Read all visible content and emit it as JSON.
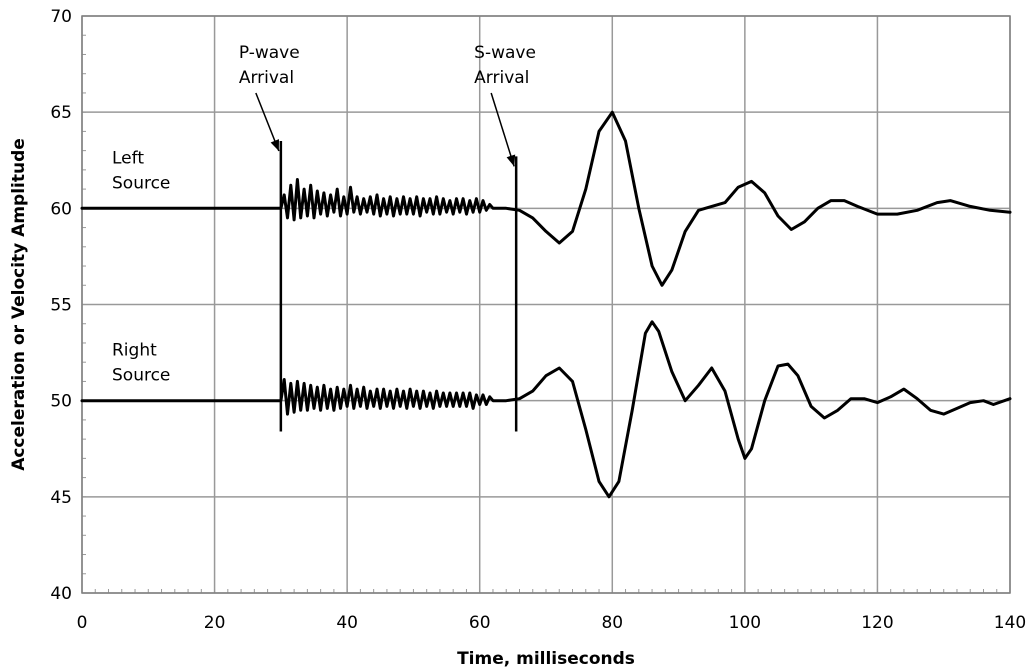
{
  "chart_data": {
    "type": "line",
    "title": "",
    "xlabel": "Time, milliseconds",
    "ylabel": "Acceleration or Velocity Amplitude",
    "xlim": [
      0,
      140
    ],
    "ylim": [
      40,
      70
    ],
    "x_ticks": [
      0,
      20,
      40,
      60,
      80,
      100,
      120,
      140
    ],
    "y_ticks": [
      40,
      45,
      50,
      55,
      60,
      65,
      70
    ],
    "grid": true,
    "legend": "none",
    "line_color": "#000000",
    "grid_color": "#999999",
    "series": [
      {
        "baseline": 60,
        "label_lines": [
          "Left",
          "Source"
        ],
        "points": [
          [
            0,
            60
          ],
          [
            30,
            60
          ],
          [
            30.5,
            60.7
          ],
          [
            31,
            59.5
          ],
          [
            31.5,
            61.2
          ],
          [
            32,
            59.4
          ],
          [
            32.5,
            61.5
          ],
          [
            33,
            59.5
          ],
          [
            33.5,
            61.0
          ],
          [
            34,
            59.6
          ],
          [
            34.5,
            61.2
          ],
          [
            35,
            59.5
          ],
          [
            35.5,
            60.9
          ],
          [
            36,
            59.7
          ],
          [
            36.5,
            60.8
          ],
          [
            37,
            59.6
          ],
          [
            37.5,
            60.7
          ],
          [
            38,
            59.8
          ],
          [
            38.5,
            61.0
          ],
          [
            39,
            59.6
          ],
          [
            39.5,
            60.6
          ],
          [
            40,
            59.7
          ],
          [
            40.5,
            61.1
          ],
          [
            41,
            59.8
          ],
          [
            41.5,
            60.6
          ],
          [
            42,
            59.7
          ],
          [
            42.5,
            60.5
          ],
          [
            43,
            59.8
          ],
          [
            43.5,
            60.6
          ],
          [
            44,
            59.7
          ],
          [
            44.5,
            60.7
          ],
          [
            45,
            59.6
          ],
          [
            45.5,
            60.5
          ],
          [
            46,
            59.7
          ],
          [
            46.5,
            60.6
          ],
          [
            47,
            59.6
          ],
          [
            47.5,
            60.5
          ],
          [
            48,
            59.7
          ],
          [
            48.5,
            60.6
          ],
          [
            49,
            59.7
          ],
          [
            49.5,
            60.5
          ],
          [
            50,
            59.7
          ],
          [
            50.5,
            60.6
          ],
          [
            51,
            59.6
          ],
          [
            51.5,
            60.5
          ],
          [
            52,
            59.8
          ],
          [
            52.5,
            60.5
          ],
          [
            53,
            59.7
          ],
          [
            53.5,
            60.6
          ],
          [
            54,
            59.7
          ],
          [
            54.5,
            60.5
          ],
          [
            55,
            59.8
          ],
          [
            55.5,
            60.4
          ],
          [
            56,
            59.7
          ],
          [
            56.5,
            60.5
          ],
          [
            57,
            59.8
          ],
          [
            57.5,
            60.5
          ],
          [
            58,
            59.7
          ],
          [
            58.5,
            60.4
          ],
          [
            59,
            59.8
          ],
          [
            59.5,
            60.5
          ],
          [
            60,
            59.8
          ],
          [
            60.5,
            60.4
          ],
          [
            61,
            59.9
          ],
          [
            61.5,
            60.2
          ],
          [
            62,
            60
          ],
          [
            64,
            60
          ],
          [
            66,
            59.9
          ],
          [
            68,
            59.5
          ],
          [
            70,
            58.8
          ],
          [
            72,
            58.2
          ],
          [
            74,
            58.8
          ],
          [
            76,
            61.0
          ],
          [
            78,
            64.0
          ],
          [
            80,
            65.0
          ],
          [
            82,
            63.5
          ],
          [
            84,
            60.0
          ],
          [
            86,
            57.0
          ],
          [
            87.5,
            56.0
          ],
          [
            89,
            56.8
          ],
          [
            91,
            58.8
          ],
          [
            93,
            59.9
          ],
          [
            95,
            60.1
          ],
          [
            97,
            60.3
          ],
          [
            99,
            61.1
          ],
          [
            101,
            61.4
          ],
          [
            103,
            60.8
          ],
          [
            105,
            59.6
          ],
          [
            107,
            58.9
          ],
          [
            109,
            59.3
          ],
          [
            111,
            60.0
          ],
          [
            113,
            60.4
          ],
          [
            115,
            60.4
          ],
          [
            117,
            60.1
          ],
          [
            120,
            59.7
          ],
          [
            123,
            59.7
          ],
          [
            126,
            59.9
          ],
          [
            129,
            60.3
          ],
          [
            131,
            60.4
          ],
          [
            134,
            60.1
          ],
          [
            137,
            59.9
          ],
          [
            140,
            59.8
          ]
        ]
      },
      {
        "baseline": 50,
        "label_lines": [
          "Right",
          "Source"
        ],
        "points": [
          [
            0,
            50
          ],
          [
            30,
            50
          ],
          [
            30.5,
            51.1
          ],
          [
            31,
            49.3
          ],
          [
            31.5,
            50.9
          ],
          [
            32,
            49.4
          ],
          [
            32.5,
            51.0
          ],
          [
            33,
            49.5
          ],
          [
            33.5,
            50.9
          ],
          [
            34,
            49.5
          ],
          [
            34.5,
            50.8
          ],
          [
            35,
            49.6
          ],
          [
            35.5,
            50.7
          ],
          [
            36,
            49.5
          ],
          [
            36.5,
            50.8
          ],
          [
            37,
            49.6
          ],
          [
            37.5,
            50.6
          ],
          [
            38,
            49.5
          ],
          [
            38.5,
            50.7
          ],
          [
            39,
            49.6
          ],
          [
            39.5,
            50.6
          ],
          [
            40,
            49.7
          ],
          [
            40.5,
            50.8
          ],
          [
            41,
            49.6
          ],
          [
            41.5,
            50.6
          ],
          [
            42,
            49.7
          ],
          [
            42.5,
            50.7
          ],
          [
            43,
            49.6
          ],
          [
            43.5,
            50.5
          ],
          [
            44,
            49.7
          ],
          [
            44.5,
            50.6
          ],
          [
            45,
            49.6
          ],
          [
            45.5,
            50.6
          ],
          [
            46,
            49.7
          ],
          [
            46.5,
            50.5
          ],
          [
            47,
            49.6
          ],
          [
            47.5,
            50.6
          ],
          [
            48,
            49.7
          ],
          [
            48.5,
            50.5
          ],
          [
            49,
            49.6
          ],
          [
            49.5,
            50.6
          ],
          [
            50,
            49.7
          ],
          [
            50.5,
            50.5
          ],
          [
            51,
            49.6
          ],
          [
            51.5,
            50.5
          ],
          [
            52,
            49.7
          ],
          [
            52.5,
            50.4
          ],
          [
            53,
            49.6
          ],
          [
            53.5,
            50.5
          ],
          [
            54,
            49.7
          ],
          [
            54.5,
            50.4
          ],
          [
            55,
            49.7
          ],
          [
            55.5,
            50.4
          ],
          [
            56,
            49.7
          ],
          [
            56.5,
            50.4
          ],
          [
            57,
            49.7
          ],
          [
            57.5,
            50.4
          ],
          [
            58,
            49.7
          ],
          [
            58.5,
            50.4
          ],
          [
            59,
            49.6
          ],
          [
            59.5,
            50.3
          ],
          [
            60,
            49.8
          ],
          [
            60.5,
            50.3
          ],
          [
            61,
            49.8
          ],
          [
            61.5,
            50.2
          ],
          [
            62,
            50
          ],
          [
            64,
            50
          ],
          [
            66,
            50.1
          ],
          [
            68,
            50.5
          ],
          [
            70,
            51.3
          ],
          [
            72,
            51.7
          ],
          [
            74,
            51.0
          ],
          [
            76,
            48.5
          ],
          [
            78,
            45.8
          ],
          [
            79.5,
            45.0
          ],
          [
            81,
            45.8
          ],
          [
            83,
            49.5
          ],
          [
            85,
            53.5
          ],
          [
            86,
            54.1
          ],
          [
            87,
            53.6
          ],
          [
            89,
            51.5
          ],
          [
            91,
            50.0
          ],
          [
            93,
            50.8
          ],
          [
            95,
            51.7
          ],
          [
            97,
            50.5
          ],
          [
            99,
            48.0
          ],
          [
            100,
            47.0
          ],
          [
            101,
            47.5
          ],
          [
            103,
            50.0
          ],
          [
            105,
            51.8
          ],
          [
            106.5,
            51.9
          ],
          [
            108,
            51.3
          ],
          [
            110,
            49.7
          ],
          [
            112,
            49.1
          ],
          [
            114,
            49.5
          ],
          [
            116,
            50.1
          ],
          [
            118,
            50.1
          ],
          [
            120,
            49.9
          ],
          [
            122,
            50.2
          ],
          [
            124,
            50.6
          ],
          [
            126,
            50.1
          ],
          [
            128,
            49.5
          ],
          [
            130,
            49.3
          ],
          [
            132,
            49.6
          ],
          [
            134,
            49.9
          ],
          [
            136,
            50.0
          ],
          [
            137.5,
            49.8
          ],
          [
            140,
            50.1
          ]
        ]
      }
    ],
    "annotations": [
      {
        "label_lines": [
          "P-wave",
          "Arrival"
        ],
        "time": 30,
        "marker_top": 63.5,
        "marker_bottom": 48.4
      },
      {
        "label_lines": [
          "S-wave",
          "Arrival"
        ],
        "time": 65.5,
        "marker_top": 62.7,
        "marker_bottom": 48.4
      }
    ]
  }
}
